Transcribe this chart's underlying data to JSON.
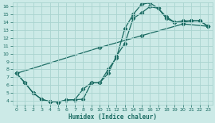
{
  "xlabel": "Humidex (Indice chaleur)",
  "bg_color": "#cceae7",
  "grid_color": "#aad4d0",
  "line_color": "#1a6b62",
  "xlim": [
    -0.5,
    23.5
  ],
  "ylim": [
    3.5,
    16.5
  ],
  "xticks": [
    0,
    1,
    2,
    3,
    4,
    5,
    6,
    7,
    8,
    9,
    10,
    11,
    12,
    13,
    14,
    15,
    16,
    17,
    18,
    19,
    20,
    21,
    22,
    23
  ],
  "yticks": [
    4,
    5,
    6,
    7,
    8,
    9,
    10,
    11,
    12,
    13,
    14,
    15,
    16
  ],
  "line1_x": [
    0,
    1,
    2,
    3,
    4,
    5,
    6,
    7,
    8,
    9,
    10,
    11,
    12,
    13,
    14,
    15,
    16,
    17,
    18,
    19,
    20,
    21,
    22,
    23
  ],
  "line1_y": [
    7.5,
    6.3,
    5.0,
    4.2,
    3.9,
    3.85,
    4.1,
    4.15,
    4.2,
    6.3,
    6.3,
    8.0,
    9.5,
    13.2,
    15.0,
    16.3,
    16.5,
    15.8,
    14.5,
    14.0,
    14.0,
    14.2,
    14.2,
    13.5
  ],
  "line2_x": [
    0,
    1,
    2,
    3,
    4,
    5,
    6,
    7,
    8,
    9,
    10,
    11,
    12,
    13,
    14,
    15,
    16,
    17,
    18,
    19,
    20,
    21,
    22,
    23
  ],
  "line2_y": [
    7.5,
    6.3,
    5.0,
    4.2,
    3.9,
    3.85,
    4.1,
    4.15,
    5.5,
    6.3,
    6.3,
    7.5,
    9.7,
    11.3,
    14.5,
    15.2,
    16.0,
    15.8,
    14.7,
    14.0,
    14.2,
    14.2,
    14.2,
    13.5
  ],
  "line3_x": [
    0,
    10,
    15,
    20,
    23
  ],
  "line3_y": [
    7.5,
    10.8,
    12.3,
    13.8,
    13.5
  ]
}
